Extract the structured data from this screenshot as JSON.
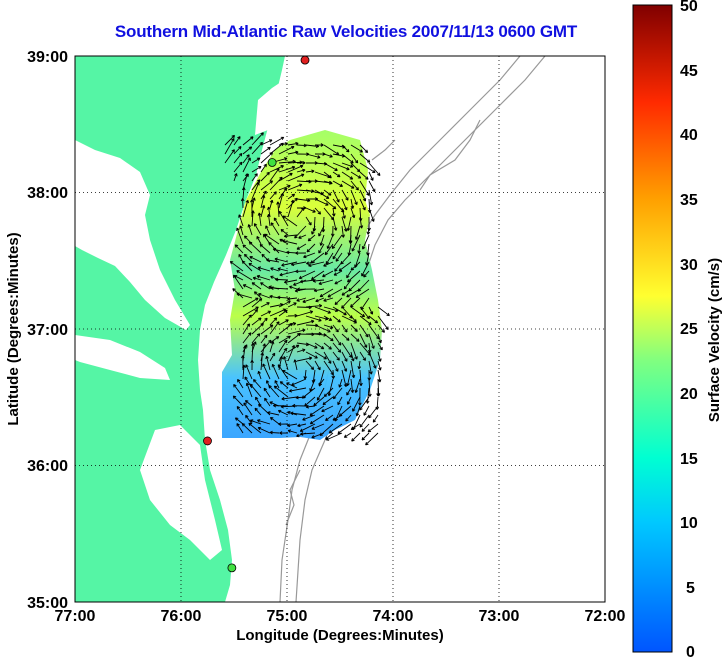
{
  "title": "Southern Mid-Atlantic Raw Velocities 2007/11/13 0600 GMT",
  "x_axis": {
    "label": "Longitude (Degrees:Minutes)",
    "ticks": [
      "77:00",
      "76:00",
      "75:00",
      "74:00",
      "73:00",
      "72:00"
    ]
  },
  "y_axis": {
    "label": "Latitude (Degrees:Minutes)",
    "ticks": [
      "39:00",
      "38:00",
      "37:00",
      "36:00",
      "35:00"
    ]
  },
  "colorbar": {
    "label": "Surface Velocity (cm/s)",
    "ticks": [
      "50",
      "45",
      "40",
      "35",
      "30",
      "25",
      "20",
      "15",
      "10",
      "5",
      "0"
    ],
    "min": 0,
    "max": 50,
    "colormap": "jet"
  },
  "map": {
    "lon_range": [
      -77,
      -72
    ],
    "lat_range": [
      35,
      39
    ],
    "land_color": "#55f5a5",
    "water_color": "#ffffff",
    "bathymetry_color": "#999999",
    "grid": "dotted",
    "stations": [
      {
        "color": "#e02020",
        "lon": -74.83,
        "lat": 38.97
      },
      {
        "color": "#40e040",
        "lon": -75.14,
        "lat": 38.22
      },
      {
        "color": "#e02020",
        "lon": -75.75,
        "lat": 36.18
      },
      {
        "color": "#40e040",
        "lon": -75.52,
        "lat": 35.25
      }
    ]
  }
}
